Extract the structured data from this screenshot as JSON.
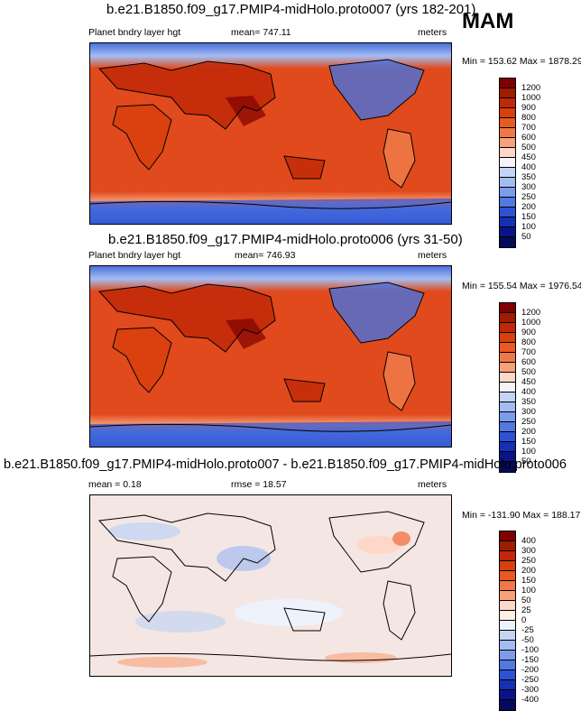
{
  "season": "MAM",
  "variable_label": "Planet bndry layer hgt",
  "units": "meters",
  "panels": [
    {
      "title": "b.e21.B1850.f09_g17.PMIP4-midHolo.proto007 (yrs 182-201)",
      "stat": "mean= 747.11",
      "minmax": "Min = 153.62 Max = 1878.29",
      "levels": [
        "1200",
        "1000",
        "900",
        "800",
        "700",
        "600",
        "500",
        "450",
        "400",
        "350",
        "300",
        "250",
        "200",
        "150",
        "100",
        "50"
      ]
    },
    {
      "title": "b.e21.B1850.f09_g17.PMIP4-midHolo.proto006 (yrs 31-50)",
      "stat": "mean= 746.93",
      "minmax": "Min = 155.54 Max = 1976.54",
      "levels": [
        "1200",
        "1000",
        "900",
        "800",
        "700",
        "600",
        "500",
        "450",
        "400",
        "350",
        "300",
        "250",
        "200",
        "150",
        "100",
        "50"
      ]
    },
    {
      "title": "b.e21.B1850.f09_g17.PMIP4-midHolo.proto007 - b.e21.B1850.f09_g17.PMIP4-midHolo.proto006",
      "stat_mean": "mean =   0.18",
      "stat_rmse": "rmse =  18.57",
      "minmax": "Min = -131.90 Max = 188.17",
      "levels": [
        "400",
        "300",
        "250",
        "200",
        "150",
        "100",
        "50",
        "25",
        "0",
        "-25",
        "-50",
        "-100",
        "-150",
        "-200",
        "-250",
        "-300",
        "-400"
      ]
    }
  ],
  "colors": {
    "abs_scale": [
      "#7f0000",
      "#a01c00",
      "#c02808",
      "#d8400c",
      "#e85a20",
      "#f07848",
      "#f8a078",
      "#fdd8c8",
      "#f4f4fa",
      "#c4d4f4",
      "#a4bcf2",
      "#7c9cea",
      "#5478e2",
      "#2e52d4",
      "#1430b4",
      "#0a1488",
      "#060a5a"
    ],
    "diff_scale": [
      "#7f0000",
      "#a01c00",
      "#c02808",
      "#d8400c",
      "#e85a20",
      "#f07848",
      "#f8a078",
      "#fdd8c8",
      "#fdeee6",
      "#eef2fc",
      "#c4d4f4",
      "#a4bcf2",
      "#7c9cea",
      "#5478e2",
      "#2e52d4",
      "#1430b4",
      "#0a1488",
      "#060a5a"
    ],
    "map_ocean": "#e04a1c",
    "map_polar": "#4a70dc",
    "diff_bg": "#f4e6e2"
  }
}
